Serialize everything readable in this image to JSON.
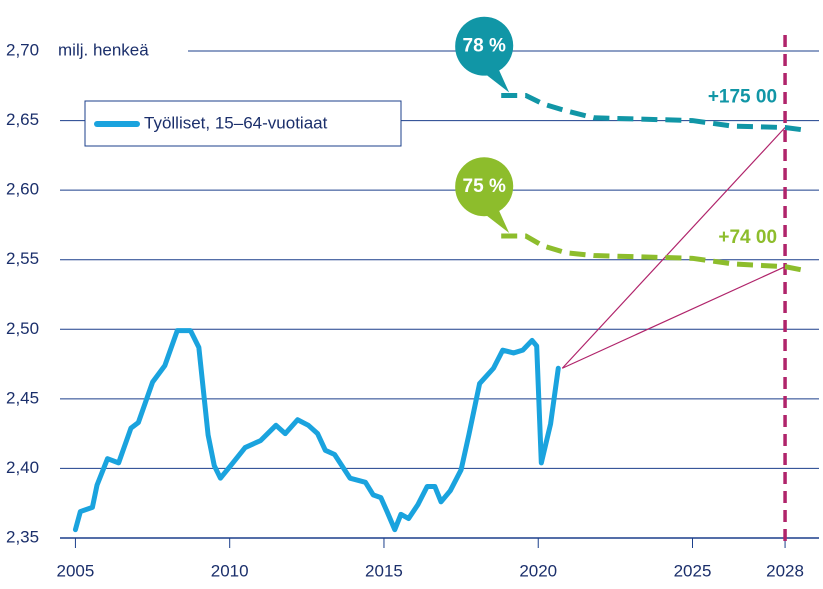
{
  "chart_data": {
    "type": "line",
    "y_axis_label": "milj. henkeä",
    "xlim": [
      2004.5,
      2029.1
    ],
    "xticks": [
      2005,
      2010,
      2015,
      2020,
      2025,
      2028
    ],
    "ylim": [
      2.35,
      2.7
    ],
    "yticks": [
      {
        "value": 2.35,
        "label": "2,35"
      },
      {
        "value": 2.4,
        "label": "2,40"
      },
      {
        "value": 2.45,
        "label": "2,45"
      },
      {
        "value": 2.5,
        "label": "2,50"
      },
      {
        "value": 2.55,
        "label": "2,55"
      },
      {
        "value": 2.6,
        "label": "2,60"
      },
      {
        "value": 2.65,
        "label": "2,65"
      },
      {
        "value": 2.7,
        "label": "2,70"
      }
    ],
    "grid": true,
    "marker_x": 2028,
    "series": [
      {
        "name": "Työlliset, 15–64-vuotiaat",
        "color": "#1aa3de",
        "x": [
          2005.0,
          2005.16,
          2005.55,
          2005.7,
          2006.04,
          2006.4,
          2006.8,
          2007.04,
          2007.5,
          2007.9,
          2008.3,
          2008.73,
          2009.0,
          2009.3,
          2009.5,
          2009.7,
          2010.03,
          2010.5,
          2011.0,
          2011.5,
          2011.8,
          2012.2,
          2012.55,
          2012.85,
          2013.1,
          2013.4,
          2013.9,
          2014.4,
          2014.65,
          2014.9,
          2015.1,
          2015.35,
          2015.55,
          2015.8,
          2016.1,
          2016.4,
          2016.65,
          2016.85,
          2017.15,
          2017.5,
          2017.75,
          2018.1,
          2018.55,
          2018.85,
          2019.2,
          2019.5,
          2019.8,
          2019.95,
          2020.1,
          2020.4,
          2020.65
        ],
        "values": [
          2.356,
          2.369,
          2.372,
          2.388,
          2.407,
          2.404,
          2.429,
          2.433,
          2.462,
          2.474,
          2.499,
          2.499,
          2.487,
          2.424,
          2.402,
          2.393,
          2.402,
          2.415,
          2.42,
          2.431,
          2.425,
          2.435,
          2.431,
          2.425,
          2.413,
          2.41,
          2.393,
          2.39,
          2.381,
          2.379,
          2.369,
          2.356,
          2.367,
          2.364,
          2.374,
          2.387,
          2.387,
          2.376,
          2.384,
          2.399,
          2.424,
          2.461,
          2.472,
          2.485,
          2.483,
          2.485,
          2.492,
          2.488,
          2.404,
          2.432,
          2.472
        ]
      }
    ],
    "projections": [
      {
        "share": "78 %",
        "change": "+175 00",
        "color": "#1196a6",
        "x": [
          2018.8,
          2019.6,
          2020.15,
          2020.9,
          2021.8,
          2025.0,
          2026.3,
          2028,
          2028.7
        ],
        "values": [
          2.668,
          2.668,
          2.662,
          2.657,
          2.652,
          2.65,
          2.646,
          2.645,
          2.643
        ]
      },
      {
        "share": "75 %",
        "change": "+74 00",
        "color": "#8dbd2c",
        "x": [
          2018.8,
          2019.6,
          2020.15,
          2020.9,
          2021.8,
          2025.0,
          2026.3,
          2028,
          2028.7
        ],
        "values": [
          2.567,
          2.567,
          2.56,
          2.555,
          2.553,
          2.551,
          2.547,
          2.545,
          2.542
        ]
      }
    ]
  }
}
